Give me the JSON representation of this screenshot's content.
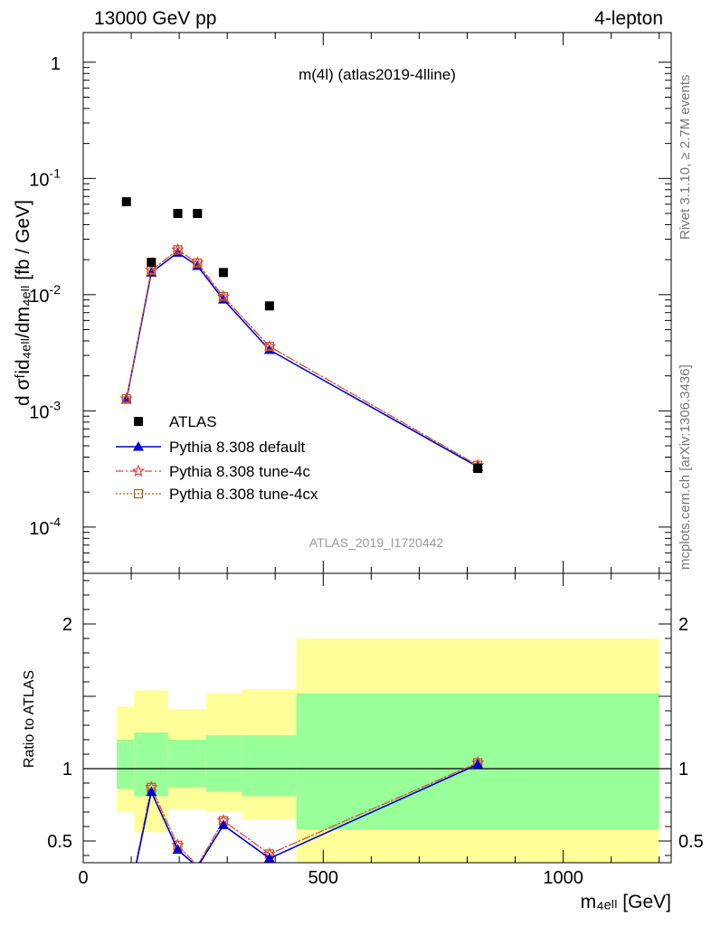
{
  "header": {
    "left": "13000 GeV pp",
    "right": "4-lepton"
  },
  "plot_title": "m(4l) (atlas2019-4lline)",
  "watermark": "ATLAS_2019_I1720442",
  "side_labels": {
    "rivet": "Rivet 3.1.10, ≥ 2.7M events",
    "mcplots": "mcplots.cern.ch [arXiv:1306.3436]"
  },
  "axes": {
    "ylabel_main": "d σᶠid₄ₑₗₗ/dm₄ₑₗₗ [fb / GeV]",
    "ylabel_ratio": "Ratio to ATLAS",
    "xlabel": "m₄ₑₗₗ [GeV]"
  },
  "legend": [
    {
      "label": "ATLAS"
    },
    {
      "label": "Pythia 8.308 default"
    },
    {
      "label": "Pythia 8.308 tune-4c"
    },
    {
      "label": "Pythia 8.308 tune-4cx"
    }
  ],
  "colors": {
    "data": "#000000",
    "default": "#0000cc",
    "tune4c": "#e84040",
    "tune4cx": "#b85a14",
    "band_inner": "#99ff99",
    "band_outer": "#ffff99"
  },
  "chart_data": [
    {
      "type": "scatter",
      "panel": "main",
      "title": "m(4l) (atlas2019-4lline)",
      "xlim": [
        0,
        1225
      ],
      "ylim": [
        4e-05,
        1.8
      ],
      "yscale": "log",
      "ylabel": "d σᶠid₄ₑₗₗ/dm₄ₑₗₗ [fb / GeV]",
      "yticks": [
        {
          "v": 0.0001,
          "base": "10",
          "exp": "-4"
        },
        {
          "v": 0.001,
          "base": "10",
          "exp": "-3"
        },
        {
          "v": 0.01,
          "base": "10",
          "exp": "-2"
        },
        {
          "v": 0.1,
          "base": "10",
          "exp": "-1"
        },
        {
          "v": 1,
          "base": "1",
          "exp": ""
        }
      ],
      "series": [
        {
          "name": "ATLAS",
          "marker": "square",
          "x": [
            90,
            142,
            197,
            238,
            292,
            388,
            822
          ],
          "y": [
            0.063,
            0.019,
            0.05,
            0.05,
            0.0155,
            0.008,
            0.00032
          ]
        },
        {
          "name": "Pythia 8.308 default",
          "marker": "triangle",
          "x": [
            90,
            142,
            197,
            238,
            292,
            388,
            822
          ],
          "y": [
            0.00125,
            0.0155,
            0.023,
            0.0177,
            0.0091,
            0.00335,
            0.00033
          ]
        },
        {
          "name": "Pythia 8.308 tune-4c",
          "marker": "star",
          "x": [
            90,
            142,
            197,
            238,
            292,
            388,
            822
          ],
          "y": [
            0.00127,
            0.0162,
            0.0243,
            0.0187,
            0.0096,
            0.00358,
            0.00034
          ]
        },
        {
          "name": "Pythia 8.308 tune-4cx",
          "marker": "open-square",
          "x": [
            90,
            142,
            197,
            238,
            292,
            388,
            822
          ],
          "y": [
            0.00127,
            0.0162,
            0.0243,
            0.0187,
            0.0096,
            0.00358,
            0.00034
          ]
        }
      ]
    },
    {
      "type": "line",
      "panel": "ratio",
      "xlim": [
        0,
        1225
      ],
      "ylim": [
        0.35,
        2.35
      ],
      "ylabel": "Ratio to ATLAS",
      "xlabel": "m₄ₑₗₗ [GeV]",
      "xticks": [
        0,
        500,
        1000
      ],
      "yticks": [
        0.5,
        1,
        2
      ],
      "reference_line": 1,
      "bands": [
        {
          "x0": 70,
          "x1": 106,
          "inner": [
            0.86,
            1.2
          ],
          "outer": [
            0.7,
            1.43
          ]
        },
        {
          "x0": 106,
          "x1": 177,
          "inner": [
            0.81,
            1.25
          ],
          "outer": [
            0.56,
            1.54
          ]
        },
        {
          "x0": 177,
          "x1": 256,
          "inner": [
            0.87,
            1.2
          ],
          "outer": [
            0.72,
            1.41
          ]
        },
        {
          "x0": 256,
          "x1": 331,
          "inner": [
            0.84,
            1.23
          ],
          "outer": [
            0.7,
            1.52
          ]
        },
        {
          "x0": 331,
          "x1": 444,
          "inner": [
            0.81,
            1.23
          ],
          "outer": [
            0.65,
            1.55
          ]
        },
        {
          "x0": 444,
          "x1": 1200,
          "inner": [
            0.58,
            1.52
          ],
          "outer": [
            0.35,
            1.9
          ]
        }
      ],
      "x": [
        90,
        142,
        197,
        238,
        292,
        388,
        822
      ],
      "series": [
        {
          "name": "Pythia 8.308 default",
          "y": [
            0.02,
            0.84,
            0.44,
            0.32,
            0.61,
            0.38,
            1.03
          ]
        },
        {
          "name": "Pythia 8.308 tune-4c",
          "y": [
            0.02,
            0.87,
            0.47,
            0.33,
            0.64,
            0.41,
            1.04
          ]
        },
        {
          "name": "Pythia 8.308 tune-4cx",
          "y": [
            0.02,
            0.87,
            0.47,
            0.33,
            0.64,
            0.41,
            1.04
          ]
        }
      ]
    }
  ]
}
